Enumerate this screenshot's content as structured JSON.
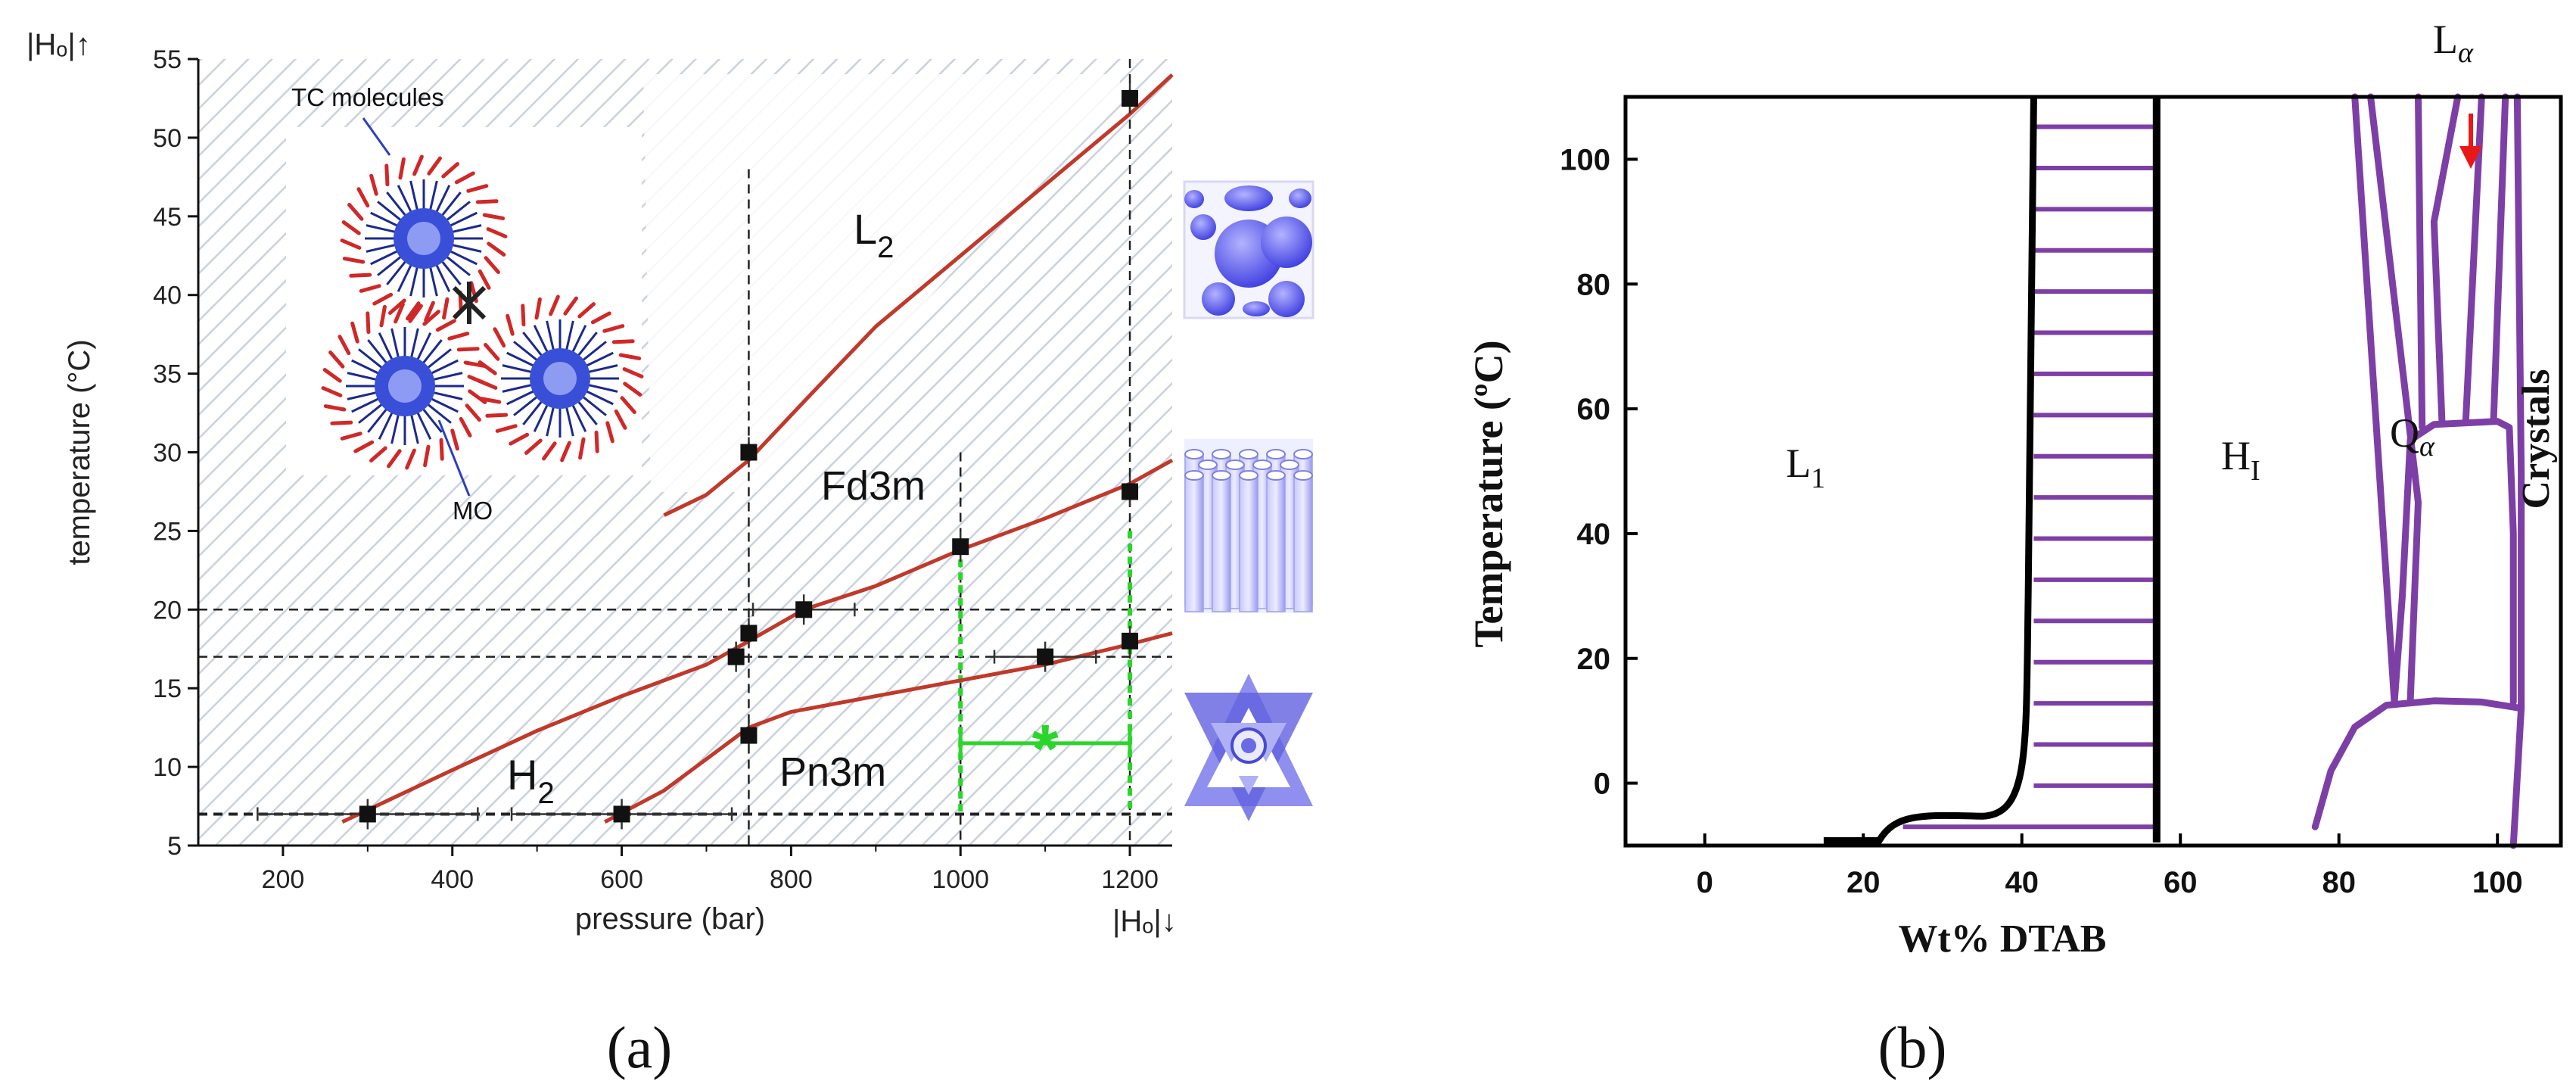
{
  "chart_data": [
    {
      "panel": "(a)",
      "type": "line",
      "xlabel": "pressure (bar)",
      "ylabel": "temperature (°C)",
      "xlim": [
        100,
        1250
      ],
      "ylim": [
        5,
        55
      ],
      "xticks": [
        200,
        400,
        600,
        800,
        1000,
        1200
      ],
      "yticks": [
        5,
        10,
        15,
        20,
        25,
        30,
        35,
        40,
        45,
        50,
        55
      ],
      "top_left_label": "|Hₒ|↑",
      "bottom_right_label": "|Hₒ|↓",
      "phase_labels": {
        "L2": "L",
        "L2_sub": "2",
        "Fd3m": "Fd3m",
        "H2": "H",
        "H2_sub": "2",
        "Pn3m": "Pn3m"
      },
      "inset_labels": {
        "tc": "TC molecules",
        "mo": "MO"
      },
      "star_label": "*",
      "series": [
        {
          "name": "L2/Fd3m boundary",
          "x": [
            650,
            700,
            750,
            820,
            900,
            1000,
            1100,
            1200,
            1250
          ],
          "y": [
            26,
            27.3,
            29.5,
            33.5,
            38,
            42.5,
            47,
            51.5,
            54
          ]
        },
        {
          "name": "Fd3m/H2 boundary",
          "x": [
            270,
            400,
            500,
            600,
            700,
            750,
            815,
            900,
            1000,
            1100,
            1200,
            1250
          ],
          "y": [
            6.5,
            9.8,
            12.3,
            14.5,
            16.5,
            18,
            20,
            21.5,
            23.8,
            25.8,
            28,
            29.5
          ]
        },
        {
          "name": "H2/Pn3m boundary",
          "x": [
            580,
            650,
            700,
            750,
            800,
            900,
            1000,
            1100,
            1200,
            1250
          ],
          "y": [
            6.5,
            8.5,
            10.5,
            12.5,
            13.5,
            14.5,
            15.5,
            16.5,
            17.8,
            18.5
          ]
        }
      ],
      "points": [
        {
          "x": 300,
          "y": 7,
          "xerr": 130
        },
        {
          "x": 600,
          "y": 7,
          "xerr": 130
        },
        {
          "x": 750,
          "y": 12,
          "xerr": 0
        },
        {
          "x": 735,
          "y": 17,
          "xerr": 0
        },
        {
          "x": 750,
          "y": 18.5,
          "xerr": 0
        },
        {
          "x": 815,
          "y": 20,
          "xerr": 60
        },
        {
          "x": 750,
          "y": 30,
          "xerr": 0
        },
        {
          "x": 1000,
          "y": 24,
          "xerr": 0
        },
        {
          "x": 1100,
          "y": 17,
          "xerr": 60
        },
        {
          "x": 1200,
          "y": 18,
          "xerr": 0
        },
        {
          "x": 1200,
          "y": 27.5,
          "xerr": 0
        },
        {
          "x": 1200,
          "y": 52.5,
          "xerr": 0
        }
      ],
      "guides_h": [
        7,
        17,
        20
      ],
      "guides_v": [
        750,
        1000,
        1200
      ]
    },
    {
      "panel": "(b)",
      "type": "line",
      "xlabel": "Wt% DTAB",
      "ylabel": "Temperature (ºC)",
      "xlim": [
        -10,
        108
      ],
      "ylim": [
        -10,
        110
      ],
      "xticks": [
        0,
        20,
        40,
        60,
        80,
        100
      ],
      "yticks": [
        0,
        20,
        40,
        60,
        80,
        100
      ],
      "phase_labels": {
        "L1": "L",
        "L1_sub": "1",
        "HI": "H",
        "HI_sub": "I",
        "Qa": "Q",
        "Qa_sub": "α",
        "La": "L",
        "La_sub": "α",
        "Crystals": "Crystals"
      }
    }
  ],
  "captions": {
    "a": "(a)",
    "b": "(b)"
  },
  "colors": {
    "boundary_red": "#c0392b",
    "boundary_purple": "#7d3fa6",
    "guide_green": "#2bd62b",
    "structure_blue": "#6f6fe8"
  }
}
